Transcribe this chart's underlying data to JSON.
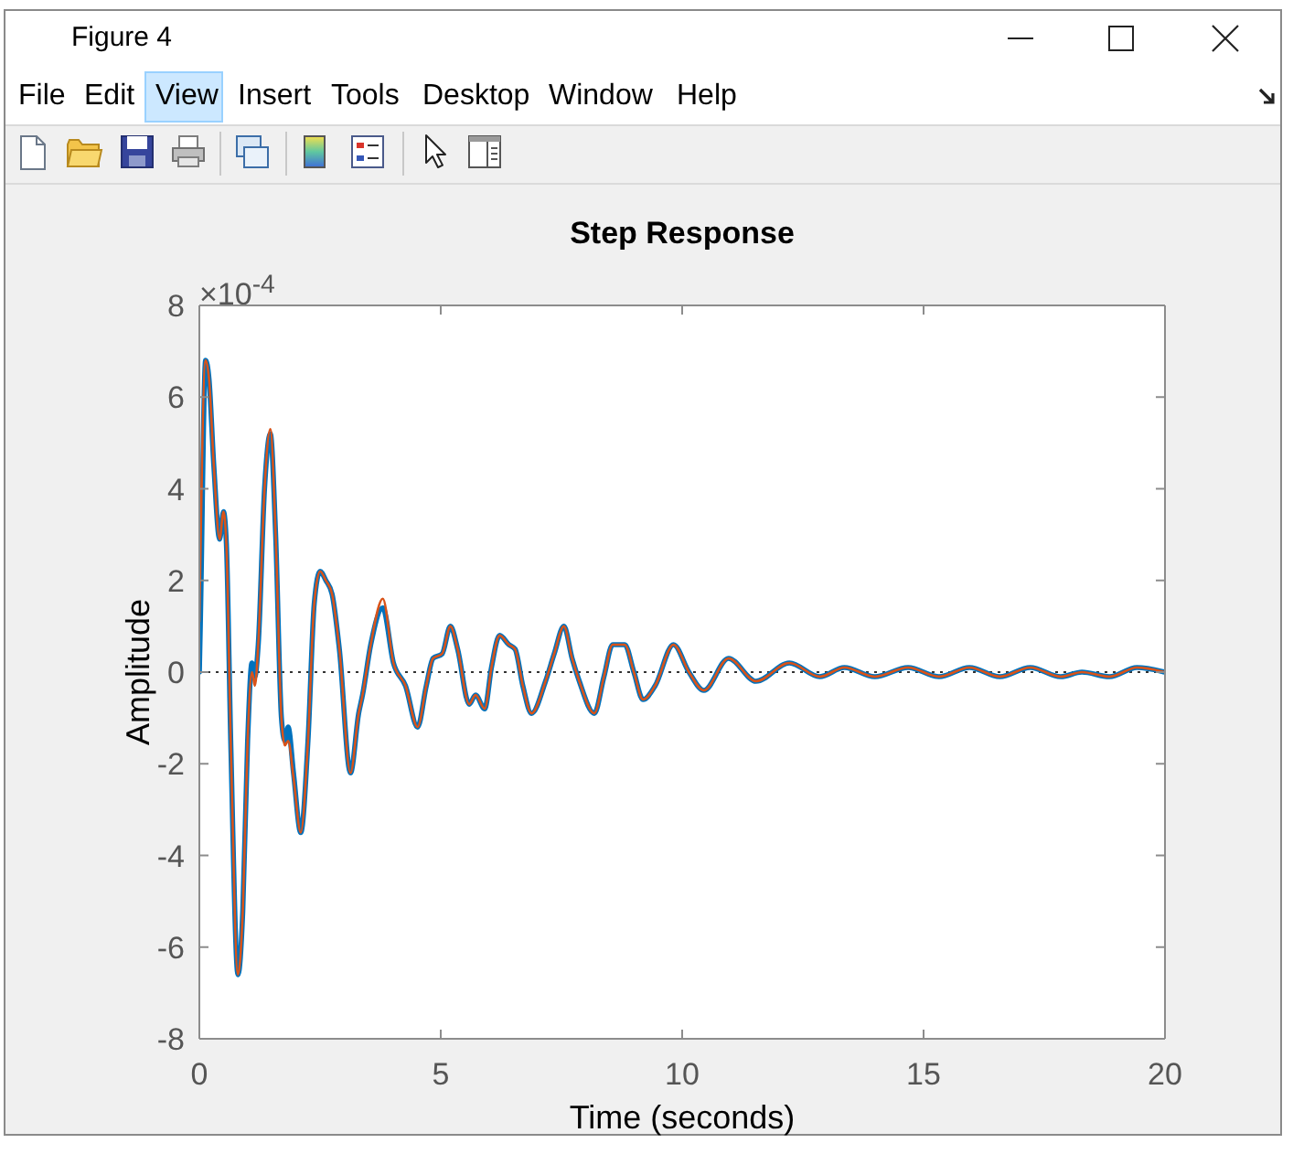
{
  "chart_data": {
    "type": "line",
    "title": "Step Response",
    "xlabel": "Time (seconds)",
    "ylabel": "Amplitude",
    "annotations": [
      "×10$^{-4}$",
      "Figure 4",
      "File",
      "Edit",
      "View",
      "Insert",
      "Tools",
      "Desktop",
      "Window",
      "Help"
    ],
    "xlim": [
      0,
      20
    ],
    "xticks": [
      0,
      5,
      10,
      15,
      20
    ],
    "ylim": [
      -8,
      8
    ],
    "yticks": [
      -8,
      -6,
      -4,
      -2,
      0,
      2,
      4,
      6,
      8
    ],
    "marker": "none",
    "line_style": "solid",
    "ref_lines": [
      {
        "axis": "y",
        "value": 0,
        "color": "#333333",
        "line_style": "dotted"
      }
    ],
    "series": [
      {
        "color": "#0072bd",
        "x": [
          0,
          0.02,
          0.13,
          0.2,
          0.3,
          0.42,
          0.5,
          0.56,
          0.65,
          0.8,
          0.9,
          1.0,
          1.09,
          1.15,
          1.22,
          1.35,
          1.47,
          1.58,
          1.7,
          1.77,
          1.84,
          1.95,
          2.1,
          2.25,
          2.38,
          2.5,
          2.62,
          2.75,
          2.9,
          3.13,
          3.3,
          3.38,
          3.55,
          3.8,
          4.02,
          4.27,
          4.52,
          4.7,
          4.84,
          5.03,
          5.2,
          5.35,
          5.59,
          5.72,
          5.91,
          6.05,
          6.22,
          6.41,
          6.54,
          6.7,
          6.88,
          7.17,
          7.35,
          7.55,
          7.72,
          7.87,
          8.18,
          8.38,
          8.56,
          8.81,
          9.0,
          9.19,
          9.44,
          9.82,
          10.14,
          10.45,
          10.96,
          11.53,
          12.22,
          12.85,
          13.36,
          13.99,
          14.68,
          15.32,
          15.95,
          16.58,
          17.21,
          17.84,
          18.28,
          18.85,
          19.42,
          20
        ],
        "values": [
          0,
          1,
          6.8,
          6.4,
          4.5,
          2.9,
          3.5,
          2.8,
          -1.5,
          -6.6,
          -5.2,
          -1.5,
          0.2,
          -0.1,
          0.6,
          4,
          5.2,
          3,
          -1,
          -1.5,
          -1.2,
          -2.2,
          -3.5,
          -1.5,
          1.5,
          2.2,
          2,
          1.7,
          0.5,
          -2.2,
          -0.9,
          -0.5,
          0.6,
          1.4,
          0.2,
          -0.3,
          -1.2,
          -0.3,
          0.3,
          0.4,
          1,
          0.5,
          -0.7,
          -0.5,
          -0.8,
          0.1,
          0.8,
          0.6,
          0.5,
          -0.3,
          -0.9,
          -0.2,
          0.4,
          1,
          0.3,
          -0.2,
          -0.9,
          -0.1,
          0.6,
          0.6,
          0,
          -0.6,
          -0.3,
          0.6,
          0,
          -0.4,
          0.3,
          -0.2,
          0.2,
          -0.1,
          0.1,
          -0.1,
          0.1,
          -0.1,
          0.1,
          -0.1,
          0.1,
          -0.1,
          0,
          -0.1,
          0.1,
          0
        ]
      },
      {
        "color": "#d95319",
        "x": [
          0,
          0.13,
          0.2,
          0.3,
          0.42,
          0.5,
          0.56,
          0.65,
          0.8,
          0.9,
          1.0,
          1.09,
          1.15,
          1.22,
          1.35,
          1.47,
          1.58,
          1.7,
          1.77,
          1.84,
          1.95,
          2.1,
          2.25,
          2.38,
          2.5,
          2.62,
          2.75,
          2.9,
          3.13,
          3.3,
          3.38,
          3.55,
          3.8,
          4.02,
          4.27,
          4.52,
          4.7,
          4.84,
          5.03,
          5.2,
          5.35,
          5.59,
          5.72,
          5.91,
          6.05,
          6.22,
          6.41,
          6.54,
          6.7,
          6.88,
          7.17,
          7.35,
          7.55,
          7.72,
          7.87,
          8.18,
          8.38,
          8.56,
          8.81,
          9.0,
          9.19,
          9.44,
          9.82,
          10.14,
          10.45,
          10.96,
          11.53,
          12.22,
          12.85,
          13.36,
          13.99,
          14.68,
          15.32,
          15.95,
          16.58,
          17.21,
          17.84,
          18.28,
          18.85,
          19.42,
          20
        ],
        "values": [
          1.1,
          6.8,
          6.4,
          4.5,
          2.9,
          3.5,
          2.8,
          -1.5,
          -6.6,
          -5.2,
          -1.5,
          0,
          -0.3,
          0.6,
          4,
          5.3,
          3,
          -1,
          -1.6,
          -1.5,
          -2.3,
          -3.5,
          -1.5,
          1.5,
          2.2,
          2,
          1.7,
          0.5,
          -2.2,
          -0.9,
          -0.5,
          0.6,
          1.6,
          0.2,
          -0.3,
          -1.2,
          -0.3,
          0.3,
          0.4,
          1,
          0.5,
          -0.7,
          -0.5,
          -0.8,
          0.1,
          0.8,
          0.6,
          0.5,
          -0.3,
          -0.9,
          -0.2,
          0.4,
          1,
          0.3,
          -0.2,
          -0.9,
          -0.1,
          0.6,
          0.6,
          0,
          -0.6,
          -0.3,
          0.6,
          0,
          -0.4,
          0.3,
          -0.2,
          0.2,
          -0.1,
          0.1,
          -0.1,
          0.1,
          -0.1,
          0.1,
          -0.1,
          0.1,
          -0.1,
          0,
          -0.1,
          0.1,
          0
        ]
      }
    ]
  }
}
